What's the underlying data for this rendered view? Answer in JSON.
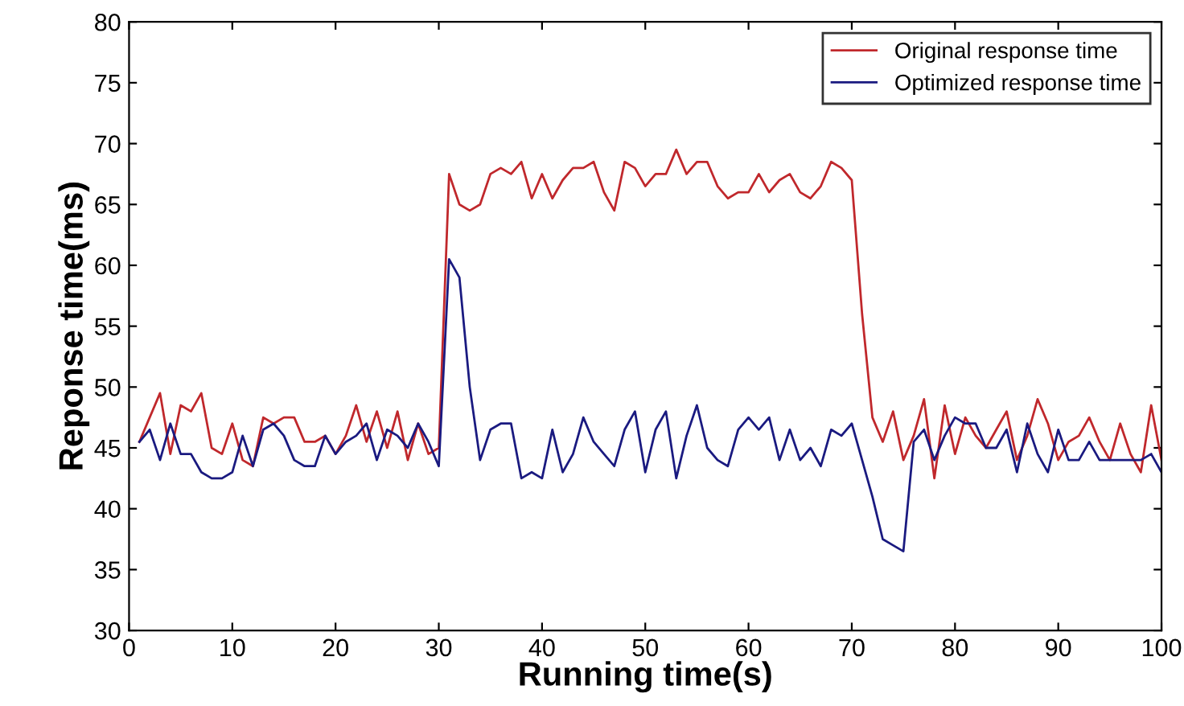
{
  "chart_data": {
    "type": "line",
    "xlabel": "Running time(s)",
    "ylabel": "Reponse time(ms)",
    "xlim": [
      0,
      100
    ],
    "xticks": [
      0,
      10,
      20,
      30,
      40,
      50,
      60,
      70,
      80,
      90,
      100
    ],
    "ylim": [
      30,
      80
    ],
    "yticks": [
      30,
      35,
      40,
      45,
      50,
      55,
      60,
      65,
      70,
      75,
      80
    ],
    "x": [
      1,
      2,
      3,
      4,
      5,
      6,
      7,
      8,
      9,
      10,
      11,
      12,
      13,
      14,
      15,
      16,
      17,
      18,
      19,
      20,
      21,
      22,
      23,
      24,
      25,
      26,
      27,
      28,
      29,
      30,
      31,
      32,
      33,
      34,
      35,
      36,
      37,
      38,
      39,
      40,
      41,
      42,
      43,
      44,
      45,
      46,
      47,
      48,
      49,
      50,
      51,
      52,
      53,
      54,
      55,
      56,
      57,
      58,
      59,
      60,
      61,
      62,
      63,
      64,
      65,
      66,
      67,
      68,
      69,
      70,
      71,
      72,
      73,
      74,
      75,
      76,
      77,
      78,
      79,
      80,
      81,
      82,
      83,
      84,
      85,
      86,
      87,
      88,
      89,
      90,
      91,
      92,
      93,
      94,
      95,
      96,
      97,
      98,
      99,
      100
    ],
    "series": [
      {
        "name": "Original response time",
        "color": "#c0282c",
        "values": [
          45.5,
          47.5,
          49.5,
          44.5,
          48.5,
          48,
          49.5,
          45,
          44.5,
          47,
          44,
          43.5,
          47.5,
          47,
          47.5,
          47.5,
          45.5,
          45.5,
          46,
          44.5,
          46,
          48.5,
          45.5,
          48,
          45,
          48,
          44,
          47,
          44.5,
          45,
          67.5,
          65,
          64.5,
          65,
          67.5,
          68,
          67.5,
          68.5,
          65.5,
          67.5,
          65.5,
          67,
          68,
          68,
          68.5,
          66,
          64.5,
          68.5,
          68,
          66.5,
          67.5,
          67.5,
          69.5,
          67.5,
          68.5,
          68.5,
          66.5,
          65.5,
          66,
          66,
          67.5,
          66,
          67,
          67.5,
          66,
          65.5,
          66.5,
          68.5,
          68,
          67,
          56,
          47.5,
          45.5,
          48,
          44,
          46,
          49,
          42.5,
          48.5,
          44.5,
          47.5,
          46,
          45,
          46.5,
          48,
          44,
          46,
          49,
          47,
          44,
          45.5,
          46,
          47.5,
          45.5,
          44,
          47,
          44.5,
          43,
          48.5,
          44
        ]
      },
      {
        "name": "Optimized response time",
        "color": "#1a1a80",
        "values": [
          45.5,
          46.5,
          44,
          47,
          44.5,
          44.5,
          43,
          42.5,
          42.5,
          43,
          46,
          43.5,
          46.5,
          47,
          46,
          44,
          43.5,
          43.5,
          46,
          44.5,
          45.5,
          46,
          47,
          44,
          46.5,
          46,
          45,
          47,
          45.5,
          43.5,
          60.5,
          59,
          50,
          44,
          46.5,
          47,
          47,
          42.5,
          43,
          42.5,
          46.5,
          43,
          44.5,
          47.5,
          45.5,
          44.5,
          43.5,
          46.5,
          48,
          43,
          46.5,
          48,
          42.5,
          46,
          48.5,
          45,
          44,
          43.5,
          46.5,
          47.5,
          46.5,
          47.5,
          44,
          46.5,
          44,
          45,
          43.5,
          46.5,
          46,
          47,
          44,
          41,
          37.5,
          37,
          36.5,
          45.5,
          46.5,
          44,
          46,
          47.5,
          47,
          47,
          45,
          45,
          46.5,
          43,
          47,
          44.5,
          43,
          46.5,
          44,
          44,
          45.5,
          44,
          44,
          44,
          44,
          44,
          44.5,
          43
        ]
      }
    ],
    "legend": "top right",
    "grid": false,
    "marker": "none",
    "line_style": "solid"
  }
}
